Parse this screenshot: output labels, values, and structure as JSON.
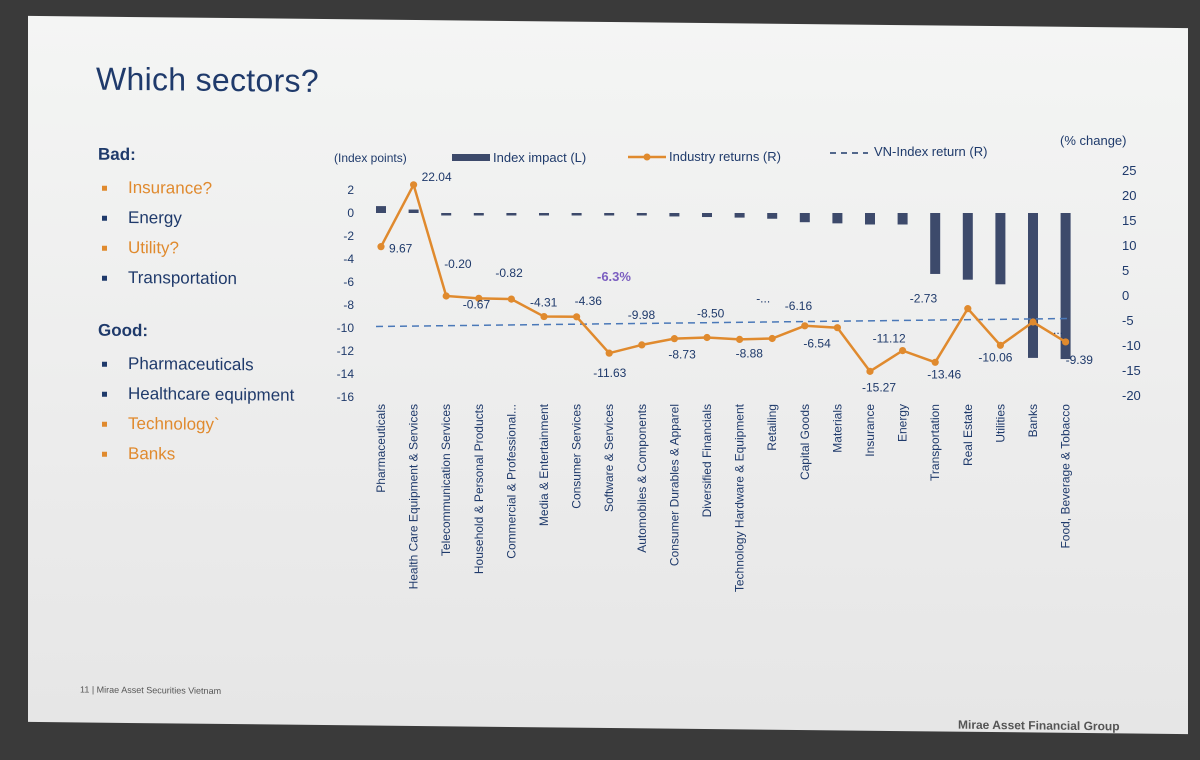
{
  "slide": {
    "title": "Which sectors?",
    "bad_heading": "Bad:",
    "bad_items": [
      {
        "label": "Insurance?",
        "orange": true
      },
      {
        "label": "Energy",
        "orange": false
      },
      {
        "label": "Utility?",
        "orange": true
      },
      {
        "label": "Transportation",
        "orange": false
      }
    ],
    "good_heading": "Good:",
    "good_items": [
      {
        "label": "Pharmaceuticals",
        "orange": false
      },
      {
        "label": "Healthcare equipment",
        "orange": false
      },
      {
        "label": "Technology`",
        "orange": true
      },
      {
        "label": "Banks",
        "orange": true
      }
    ],
    "footer_left": "11 | Mirae Asset Securities Vietnam",
    "footer_right": "Mirae Asset Financial Group"
  },
  "chart_data": {
    "type": "bar",
    "left_axis_label": "(Index points)",
    "right_axis_label": "(% change)",
    "left_ylim": [
      -16,
      2
    ],
    "left_ticks": [
      "2",
      "0",
      "-2",
      "-4",
      "-6",
      "-8",
      "-10",
      "-12",
      "-14",
      "-16"
    ],
    "right_ylim": [
      -20,
      25
    ],
    "right_ticks": [
      "25",
      "20",
      "15",
      "10",
      "5",
      "0",
      "-5",
      "-10",
      "-15",
      "-20"
    ],
    "legend": [
      "Index impact (L)",
      "Industry returns (R)",
      "VN-Index return (R)"
    ],
    "categories": [
      "Pharmaceuticals",
      "Health Care Equipment & Services",
      "Telecommunication Services",
      "Household & Personal Products",
      "Commercial & Professional...",
      "Media & Entertainment",
      "Consumer Services",
      "Software & Services",
      "Automobiles & Components",
      "Consumer Durables & Apparel",
      "Diversified Financials",
      "Technology Hardware & Equipment",
      "Retailing",
      "Capital Goods",
      "Materials",
      "Insurance",
      "Energy",
      "Transportation",
      "Real Estate",
      "Utilities",
      "Banks",
      "Food, Beverage & Tobacco"
    ],
    "index_impact": [
      0.6,
      0.3,
      0.0,
      -0.02,
      -0.05,
      -0.06,
      -0.08,
      -0.1,
      -0.2,
      -0.3,
      -0.35,
      -0.4,
      -0.5,
      -0.8,
      -0.9,
      -1.0,
      -1.0,
      -5.3,
      -5.8,
      -6.2,
      -12.6,
      -12.7
    ],
    "industry_returns": [
      9.67,
      22.04,
      -0.2,
      -0.67,
      -0.82,
      -4.31,
      -4.36,
      -11.63,
      -9.98,
      -8.73,
      -8.5,
      -8.88,
      -8.7,
      -6.16,
      -6.54,
      -15.27,
      -11.12,
      -13.46,
      -2.73,
      -10.06,
      -5.4,
      -9.39
    ],
    "return_labels": [
      "9.67",
      "22.04",
      "-0.20",
      "-0.67",
      "-0.82",
      "-4.31",
      "-4.36",
      "-11.63",
      "-9.98",
      "-8.73",
      "-8.50",
      "-8.88",
      "-...",
      "-6.16",
      "-6.54",
      "-15.27",
      "-11.12",
      "-13.46",
      "-2.73",
      "-10.06",
      "...",
      "-9.39"
    ],
    "vn_index_return": -6.3,
    "vn_index_label": "-6.3%",
    "colors": {
      "bars": "#3d4a6b",
      "line": "#e08a2e",
      "vn_line": "#4a78b8",
      "vn_label": "#7b5ec0",
      "text": "#1f3a6b"
    }
  }
}
